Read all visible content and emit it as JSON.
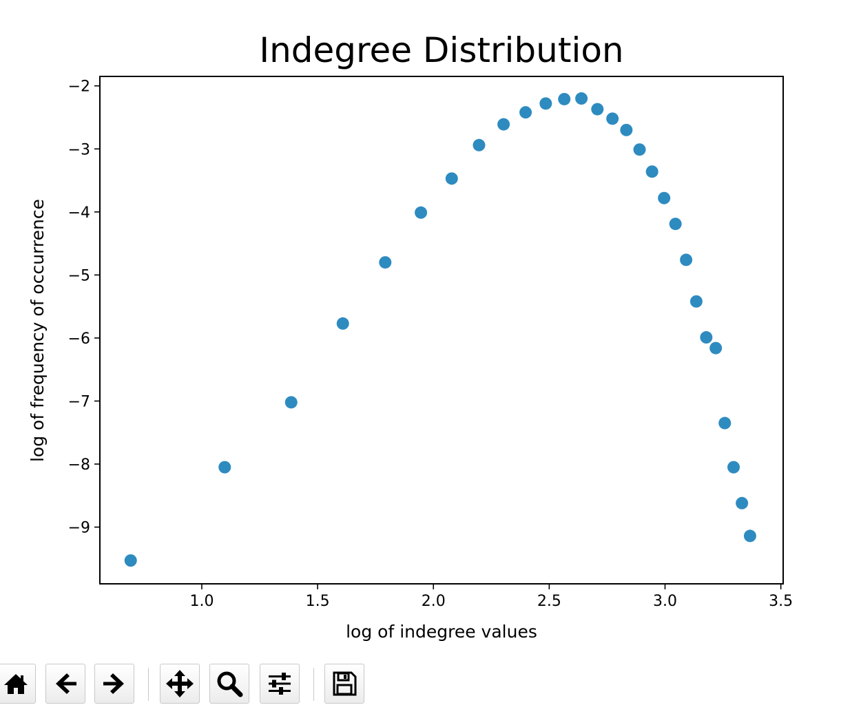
{
  "chart_data": {
    "type": "scatter",
    "title": "Indegree Distribution",
    "xlabel": "log of indegree values",
    "ylabel": "log of frequency of occurrence",
    "xlim": [
      0.56,
      3.51
    ],
    "ylim": [
      -9.9,
      -1.85
    ],
    "x_ticks": [
      1.0,
      1.5,
      2.0,
      2.5,
      3.0,
      3.5
    ],
    "x_tick_labels": [
      "1.0",
      "1.5",
      "2.0",
      "2.5",
      "3.0",
      "3.5"
    ],
    "y_ticks": [
      -2,
      -3,
      -4,
      -5,
      -6,
      -7,
      -8,
      -9
    ],
    "y_tick_labels": [
      "−2",
      "−3",
      "−4",
      "−5",
      "−6",
      "−7",
      "−8",
      "−9"
    ],
    "grid": false,
    "marker_color": "#2e8bc0",
    "x": [
      0.693,
      1.099,
      1.386,
      1.609,
      1.792,
      1.946,
      2.079,
      2.197,
      2.303,
      2.398,
      2.485,
      2.565,
      2.639,
      2.708,
      2.773,
      2.833,
      2.89,
      2.944,
      2.996,
      3.045,
      3.091,
      3.135,
      3.178,
      3.219,
      3.258,
      3.296,
      3.332,
      3.367
    ],
    "y": [
      -9.53,
      -8.05,
      -7.02,
      -5.77,
      -4.8,
      -4.01,
      -3.47,
      -2.94,
      -2.61,
      -2.42,
      -2.28,
      -2.21,
      -2.2,
      -2.37,
      -2.52,
      -2.7,
      -3.01,
      -3.36,
      -3.78,
      -4.19,
      -4.76,
      -5.42,
      -5.99,
      -6.16,
      -7.35,
      -8.05,
      -8.62,
      -9.14
    ]
  },
  "toolbar": {
    "buttons": [
      {
        "name": "home-button",
        "icon": "home-icon"
      },
      {
        "name": "back-button",
        "icon": "arrow-left-icon"
      },
      {
        "name": "forward-button",
        "icon": "arrow-right-icon"
      },
      {
        "name": "pan-button",
        "icon": "move-icon"
      },
      {
        "name": "zoom-button",
        "icon": "zoom-icon"
      },
      {
        "name": "configure-subplots-button",
        "icon": "sliders-icon"
      },
      {
        "name": "save-button",
        "icon": "save-icon"
      }
    ]
  }
}
